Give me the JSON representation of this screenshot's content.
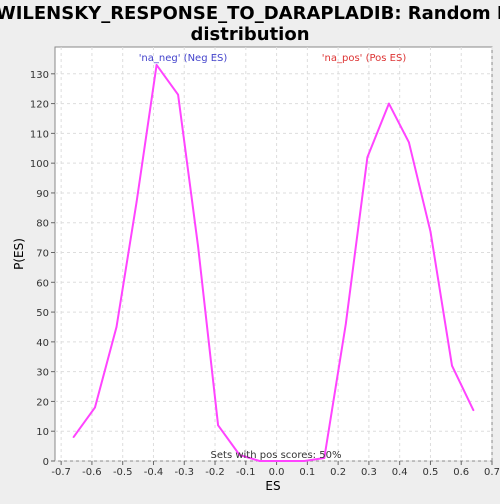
{
  "chart_data": {
    "type": "line",
    "title_line1": "WILENSKY_RESPONSE_TO_DARAPLADIB: Random ES",
    "title_line2": "distribution",
    "xlabel": "ES",
    "ylabel": "P(ES)",
    "xlim": [
      -0.72,
      0.7
    ],
    "ylim": [
      0,
      139
    ],
    "x_ticks": [
      -0.7,
      -0.6,
      -0.5,
      -0.4,
      -0.3,
      -0.2,
      -0.1,
      0.0,
      0.1,
      0.2,
      0.3,
      0.4,
      0.5,
      0.6,
      0.7
    ],
    "x_tick_labels": [
      "-0.7",
      "-0.6",
      "-0.5",
      "-0.4",
      "-0.3",
      "-0.2",
      "-0.1",
      "0.0",
      "0.1",
      "0.2",
      "0.3",
      "0.4",
      "0.5",
      "0.6",
      "0.7"
    ],
    "y_ticks": [
      0,
      10,
      20,
      30,
      40,
      50,
      60,
      70,
      80,
      90,
      100,
      110,
      120,
      130
    ],
    "y_tick_labels": [
      "0",
      "10",
      "20",
      "30",
      "40",
      "50",
      "60",
      "70",
      "80",
      "90",
      "100",
      "110",
      "120",
      "130"
    ],
    "grid": true,
    "series": [
      {
        "color": "#ff44ff",
        "x": [
          -0.66,
          -0.59,
          -0.52,
          -0.455,
          -0.39,
          -0.32,
          -0.255,
          -0.19,
          -0.12,
          -0.055,
          0.02,
          0.09,
          0.155,
          0.225,
          0.295,
          0.365,
          0.43,
          0.5,
          0.57,
          0.64
        ],
        "y": [
          8,
          18,
          45,
          87,
          133,
          123,
          72,
          12,
          2,
          0,
          0,
          0,
          1,
          46,
          102,
          120,
          107,
          77,
          32,
          17
        ]
      }
    ],
    "annotations": [
      {
        "text": "'na_neg' (Neg ES)",
        "color": "#4444cc"
      },
      {
        "text": "'na_pos' (Pos ES)",
        "color": "#dd3333"
      }
    ],
    "footer_note": "Sets with pos scores: 50%"
  },
  "colors": {
    "background": "#eeeeee",
    "plot_background": "#ffffff",
    "grid": "#dddddd",
    "line": "#ff44ff"
  }
}
